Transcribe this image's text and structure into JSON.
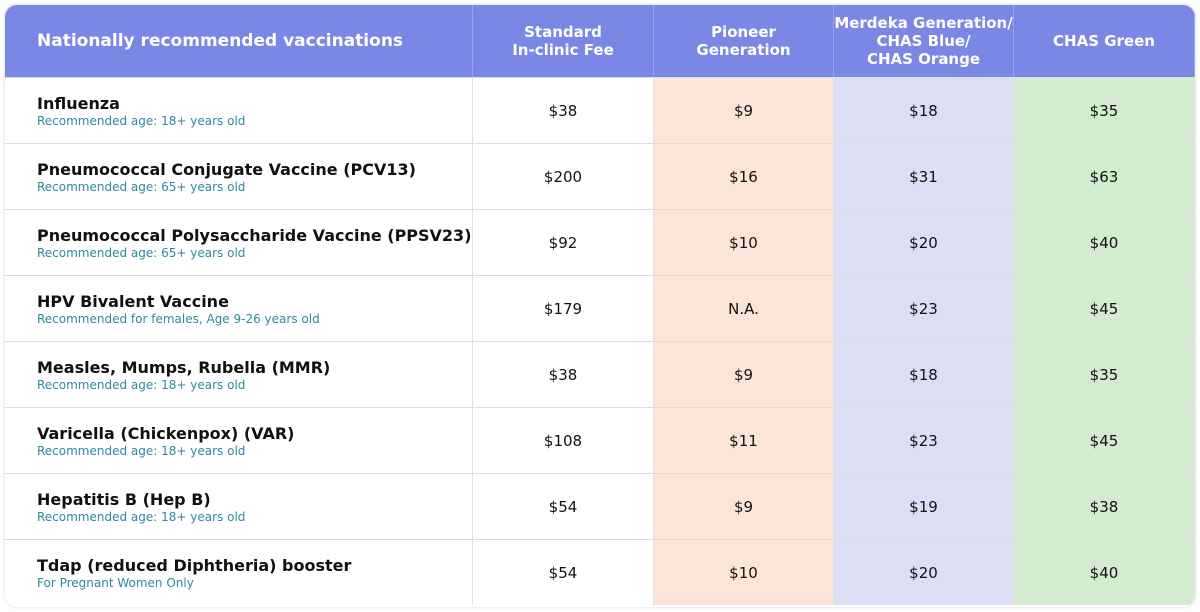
{
  "table": {
    "headers": [
      [
        "Nationally recommended vaccinations"
      ],
      [
        "Standard",
        "In-clinic Fee"
      ],
      [
        "Pioneer",
        "Generation"
      ],
      [
        "Merdeka Generation/",
        "CHAS Blue/",
        "CHAS Orange"
      ],
      [
        "CHAS Green"
      ]
    ],
    "rows": [
      {
        "name": "Influenza",
        "note": "Recommended age: 18+ years old",
        "values": [
          "$38",
          "$9",
          "$18",
          "$35"
        ]
      },
      {
        "name": "Pneumococcal Conjugate Vaccine (PCV13)",
        "note": "Recommended age: 65+ years old",
        "values": [
          "$200",
          "$16",
          "$31",
          "$63"
        ]
      },
      {
        "name": "Pneumococcal Polysaccharide Vaccine (PPSV23)",
        "note": "Recommended age: 65+ years old",
        "values": [
          "$92",
          "$10",
          "$20",
          "$40"
        ]
      },
      {
        "name": "HPV Bivalent Vaccine",
        "note": "Recommended for females, Age 9-26 years old",
        "values": [
          "$179",
          "N.A.",
          "$23",
          "$45"
        ]
      },
      {
        "name": "Measles, Mumps, Rubella (MMR)",
        "note": "Recommended age: 18+ years old",
        "values": [
          "$38",
          "$9",
          "$18",
          "$35"
        ]
      },
      {
        "name": "Varicella (Chickenpox) (VAR)",
        "note": "Recommended age: 18+ years old",
        "values": [
          "$108",
          "$11",
          "$23",
          "$45"
        ]
      },
      {
        "name": "Hepatitis B (Hep B)",
        "note": "Recommended age: 18+ years old",
        "values": [
          "$54",
          "$9",
          "$19",
          "$38"
        ]
      },
      {
        "name": "Tdap (reduced Diphtheria) booster",
        "note": "For Pregnant Women Only",
        "values": [
          "$54",
          "$10",
          "$20",
          "$40"
        ]
      }
    ]
  }
}
